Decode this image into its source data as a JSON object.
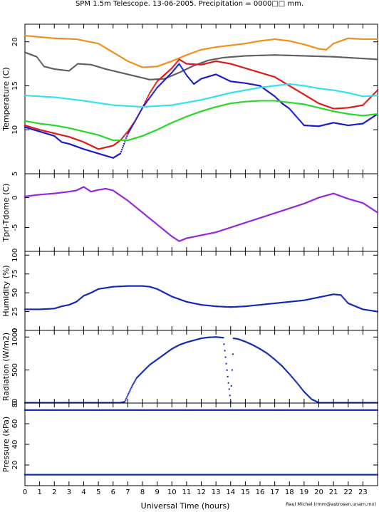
{
  "title": "SPM 1.5m Telescope. 13-06-2005. Precipitation = 0000□□ mm.",
  "xlabel": "Universal Time (hours)",
  "credit": "Raul Michel (rmm@astrosen.unam.mx)",
  "x_ticks": [
    "0",
    "1",
    "2",
    "3",
    "4",
    "5",
    "6",
    "7",
    "8",
    "9",
    "10",
    "11",
    "12",
    "13",
    "14",
    "15",
    "16",
    "17",
    "18",
    "19",
    "20",
    "21",
    "22",
    "23"
  ],
  "colors": {
    "orange": "#f0901a",
    "gray": "#606060",
    "red": "#e01818",
    "blue": "#1a1ac8",
    "cyan": "#34e0f0",
    "green": "#28d828",
    "purple": "#9428d8",
    "navy": "#1428b4"
  },
  "chart_data": [
    {
      "type": "scatter",
      "ylabel": "Temperature (C)",
      "xlim": [
        0,
        24
      ],
      "ylim": [
        5,
        22
      ],
      "y_ticks": [
        "5",
        "10",
        "15",
        "20"
      ],
      "grid": false,
      "series": [
        {
          "color": "orange",
          "x": [
            0,
            2,
            3.5,
            5,
            6,
            7,
            8,
            9,
            10,
            11,
            12,
            13,
            14,
            15,
            16,
            17,
            18,
            19,
            20,
            20.5,
            21,
            22,
            23,
            24
          ],
          "y": [
            20.7,
            20.4,
            20.3,
            19.8,
            18.8,
            17.8,
            17.1,
            17.2,
            17.8,
            18.5,
            19.1,
            19.4,
            19.6,
            19.8,
            20.1,
            20.3,
            20.1,
            19.7,
            19.2,
            19.1,
            19.8,
            20.4,
            20.3,
            20.3
          ]
        },
        {
          "color": "gray",
          "x": [
            0,
            0.8,
            1.3,
            2,
            3,
            3.6,
            4.5,
            5.5,
            6.5,
            7.5,
            8.5,
            9.5,
            10.5,
            11.5,
            12.5,
            13.5,
            15,
            17,
            19,
            21,
            23,
            24
          ],
          "y": [
            18.8,
            18.3,
            17.2,
            16.9,
            16.7,
            17.5,
            17.4,
            16.9,
            16.5,
            16.1,
            15.7,
            15.8,
            16.5,
            17.3,
            17.9,
            18.2,
            18.4,
            18.5,
            18.4,
            18.3,
            18.1,
            18.0
          ]
        },
        {
          "color": "red",
          "x": [
            0,
            1,
            2,
            3,
            4,
            5,
            6,
            6.5,
            7,
            7.5,
            8,
            8.5,
            9,
            10,
            10.5,
            11,
            12,
            13,
            14,
            15,
            16,
            17,
            18,
            19,
            20,
            21,
            22,
            23,
            24
          ],
          "y": [
            10.5,
            10,
            9.6,
            9.2,
            8.6,
            7.8,
            8.2,
            8.8,
            9.8,
            11,
            12.5,
            14.2,
            15.5,
            17,
            18,
            17.5,
            17.4,
            17.8,
            17.5,
            17,
            16.5,
            16,
            15,
            14,
            13,
            12.4,
            12.5,
            12.8,
            14.5
          ]
        },
        {
          "color": "blue",
          "x": [
            0,
            1,
            2,
            2.5,
            3,
            4,
            5,
            6,
            6.5,
            7,
            8,
            9,
            10,
            10.5,
            11,
            11.5,
            12,
            13,
            14,
            15,
            16,
            16.5,
            17,
            17.5,
            18,
            19,
            20,
            21,
            22,
            23,
            24
          ],
          "y": [
            10.3,
            9.8,
            9.3,
            8.6,
            8.4,
            7.8,
            7.3,
            6.8,
            7.3,
            9.5,
            12.5,
            14.8,
            16.5,
            17.5,
            16.2,
            15.2,
            15.8,
            16.3,
            15.5,
            15.3,
            15,
            14.4,
            13.8,
            13,
            12.4,
            10.5,
            10.4,
            10.8,
            10.5,
            10.7,
            11.8
          ]
        },
        {
          "color": "cyan",
          "x": [
            0,
            2,
            4,
            6,
            8,
            10,
            12,
            14,
            16,
            18,
            19,
            20,
            21,
            22,
            23,
            24
          ],
          "y": [
            13.9,
            13.7,
            13.3,
            12.8,
            12.6,
            12.8,
            13.4,
            14.2,
            14.8,
            15.2,
            15.0,
            14.7,
            14.5,
            14.2,
            13.8,
            13.9
          ]
        },
        {
          "color": "green",
          "x": [
            0,
            1,
            2,
            3,
            4,
            5,
            6,
            7,
            8,
            9,
            10,
            11,
            12,
            13,
            14,
            15,
            16,
            17,
            18,
            19,
            20,
            21,
            22,
            23,
            24
          ],
          "y": [
            11.0,
            10.7,
            10.5,
            10.2,
            9.8,
            9.4,
            8.8,
            8.8,
            9.3,
            10.0,
            10.8,
            11.5,
            12.1,
            12.6,
            13.0,
            13.2,
            13.3,
            13.3,
            13.1,
            12.9,
            12.5,
            12.1,
            11.8,
            11.6,
            11.8
          ]
        }
      ]
    },
    {
      "type": "scatter",
      "ylabel": "Tpri-Tdome (C)",
      "xlim": [
        0,
        24
      ],
      "ylim": [
        -9,
        4
      ],
      "y_ticks": [
        "0",
        "-5"
      ],
      "series": [
        {
          "color": "purple",
          "x": [
            0,
            1,
            2,
            3,
            3.5,
            4,
            4.5,
            5,
            5.5,
            6,
            7,
            8,
            9,
            10,
            10.5,
            11,
            12,
            13,
            14,
            15,
            16,
            17,
            18,
            19,
            20,
            21,
            22,
            23,
            24
          ],
          "y": [
            0.2,
            0.5,
            0.7,
            1.0,
            1.2,
            1.8,
            1.0,
            1.3,
            1.5,
            1.2,
            -0.5,
            -2.5,
            -4.5,
            -6.5,
            -7.3,
            -6.8,
            -6.3,
            -5.8,
            -5.0,
            -4.2,
            -3.4,
            -2.6,
            -1.8,
            -1.0,
            0.0,
            0.7,
            -0.2,
            -0.9,
            -2.5
          ]
        }
      ]
    },
    {
      "type": "scatter",
      "ylabel": "Humidity (%)",
      "xlim": [
        0,
        24
      ],
      "ylim": [
        0,
        105
      ],
      "y_ticks": [
        "0",
        "25",
        "50",
        "75",
        "100"
      ],
      "series": [
        {
          "color": "navy",
          "x": [
            0,
            1,
            2,
            2.5,
            3,
            3.5,
            4,
            4.5,
            5,
            6,
            7,
            8,
            8.5,
            9,
            9.5,
            10,
            11,
            12,
            13,
            14,
            15,
            16,
            17,
            18,
            19,
            20,
            21,
            21.5,
            22,
            23,
            24
          ],
          "y": [
            28,
            28,
            29,
            32,
            34,
            38,
            46,
            50,
            55,
            58,
            59,
            59,
            58,
            55,
            50,
            45,
            38,
            34,
            32,
            31,
            32,
            34,
            36,
            38,
            40,
            44,
            48,
            47,
            36,
            28,
            25
          ]
        }
      ]
    },
    {
      "type": "scatter",
      "ylabel": "Radiation (W/m2)",
      "xlim": [
        0,
        24
      ],
      "ylim": [
        0,
        1100
      ],
      "y_ticks": [
        "0",
        "500",
        "1000"
      ],
      "series": [
        {
          "color": "navy",
          "x": [
            0,
            6.5,
            6.8,
            7.0,
            7.3,
            7.6,
            8.0,
            8.5,
            9.0,
            9.5,
            10.0,
            10.5,
            11.0,
            11.5,
            12.0,
            12.5,
            13.0,
            13.5,
            13.8,
            14.0,
            14.2,
            14.5,
            15,
            15.5,
            16,
            16.5,
            17,
            17.5,
            18,
            18.5,
            19,
            19.5,
            20,
            21,
            22,
            23,
            24
          ],
          "y": [
            5,
            5,
            20,
            120,
            260,
            380,
            470,
            580,
            660,
            740,
            820,
            880,
            920,
            950,
            980,
            995,
            1000,
            990,
            400,
            20,
            980,
            970,
            930,
            880,
            820,
            750,
            660,
            560,
            440,
            310,
            170,
            60,
            5,
            5,
            5,
            5,
            5
          ]
        }
      ]
    },
    {
      "type": "scatter",
      "ylabel": "Pressure (kPa)",
      "xlim": [
        0,
        24
      ],
      "ylim": [
        0,
        80
      ],
      "y_ticks": [
        "20",
        "40",
        "60",
        "80"
      ],
      "series": [
        {
          "color": "navy",
          "x": [
            0,
            24
          ],
          "y": [
            73.2,
            73.2
          ]
        },
        {
          "color": "navy",
          "x": [
            0,
            24
          ],
          "y": [
            10.6,
            10.6
          ]
        }
      ]
    }
  ]
}
